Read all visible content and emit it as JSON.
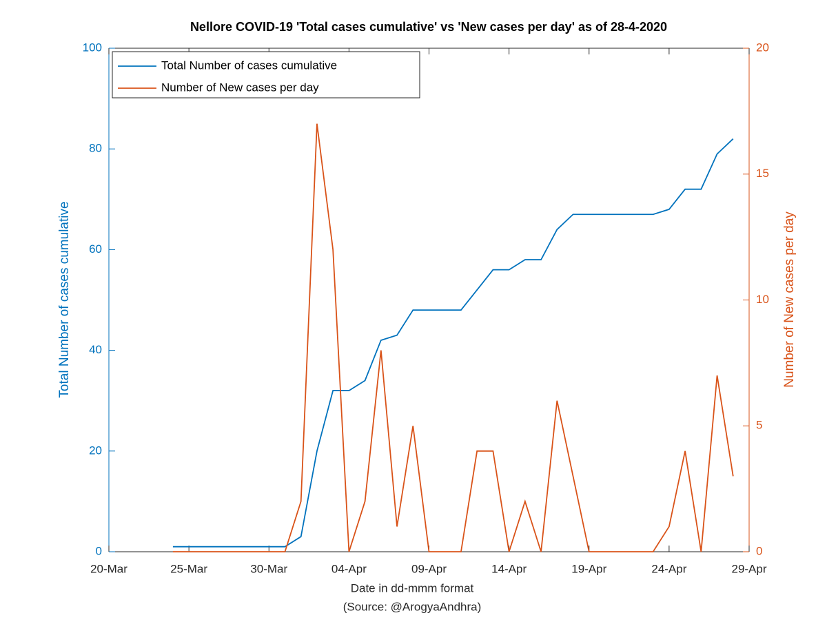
{
  "chart_data": {
    "type": "line",
    "title": "Nellore COVID-19 'Total cases cumulative' vs 'New cases per day' as of 28-4-2020",
    "x_label": "Date in dd-mmm format",
    "x_label_source": "(Source: @ArogyaAndhra)",
    "y_label": "Total Number of cases cumulative",
    "y2_label": "Number of New cases per day",
    "x": [
      "24-Mar",
      "25-Mar",
      "26-Mar",
      "27-Mar",
      "28-Mar",
      "29-Mar",
      "30-Mar",
      "31-Mar",
      "01-Apr",
      "02-Apr",
      "03-Apr",
      "04-Apr",
      "05-Apr",
      "06-Apr",
      "07-Apr",
      "08-Apr",
      "09-Apr",
      "10-Apr",
      "11-Apr",
      "12-Apr",
      "13-Apr",
      "14-Apr",
      "15-Apr",
      "16-Apr",
      "17-Apr",
      "18-Apr",
      "19-Apr",
      "20-Apr",
      "21-Apr",
      "22-Apr",
      "23-Apr",
      "24-Apr",
      "25-Apr",
      "26-Apr",
      "27-Apr",
      "28-Apr"
    ],
    "series": [
      {
        "name": "Total Number of cases cumulative",
        "color": "#0072bd",
        "axis": "y",
        "values": [
          1,
          1,
          1,
          1,
          1,
          1,
          1,
          1,
          3,
          20,
          32,
          32,
          34,
          42,
          43,
          48,
          48,
          48,
          48,
          52,
          56,
          56,
          58,
          58,
          64,
          67,
          67,
          67,
          67,
          67,
          67,
          68,
          72,
          72,
          79,
          82
        ]
      },
      {
        "name": "Number of New cases per day",
        "color": "#d95319",
        "axis": "y2",
        "values": [
          0,
          0,
          0,
          0,
          0,
          0,
          0,
          0,
          2,
          17,
          12,
          0,
          2,
          8,
          1,
          5,
          0,
          0,
          0,
          4,
          4,
          0,
          2,
          0,
          6,
          3,
          0,
          0,
          0,
          0,
          0,
          1,
          4,
          0,
          7,
          3
        ]
      }
    ],
    "xlim": [
      "20-Mar",
      "29-Apr"
    ],
    "xticks": [
      "20-Mar",
      "25-Mar",
      "30-Mar",
      "04-Apr",
      "09-Apr",
      "14-Apr",
      "19-Apr",
      "24-Apr",
      "29-Apr"
    ],
    "ylim": [
      0,
      100
    ],
    "yticks": [
      0,
      20,
      40,
      60,
      80,
      100
    ],
    "y2lim": [
      0,
      20
    ],
    "y2ticks": [
      0,
      5,
      10,
      15,
      20
    ],
    "legend": "top-left"
  }
}
